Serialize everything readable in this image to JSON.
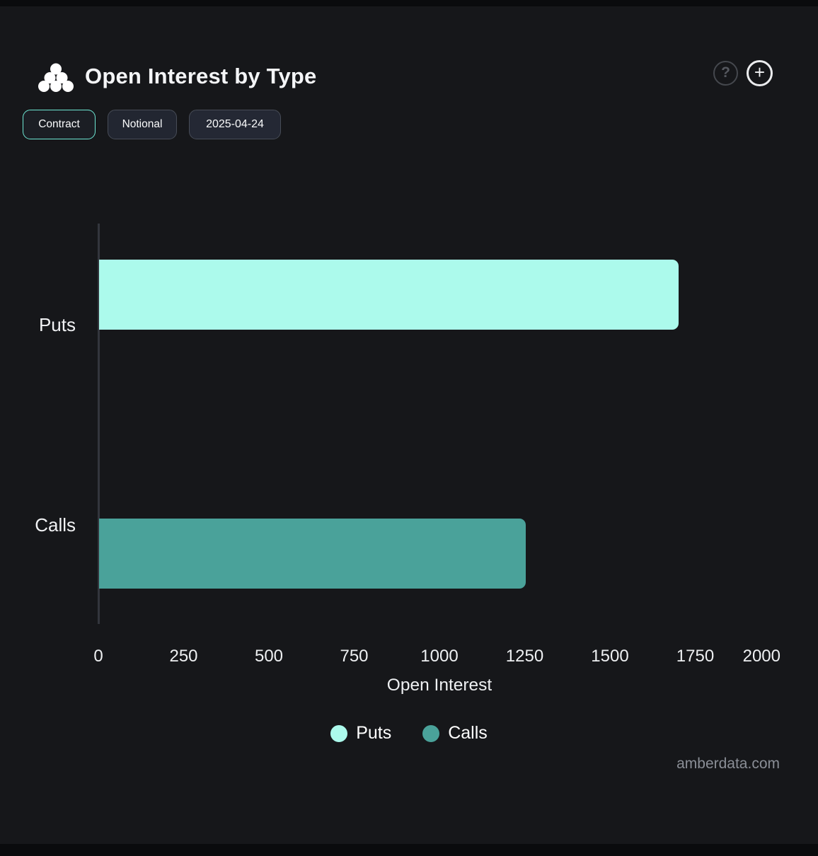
{
  "header": {
    "title": "Open Interest by Type",
    "logo_icon": "amberdata-logo",
    "help_glyph": "?",
    "add_glyph": "+"
  },
  "toolbar": {
    "contract_label": "Contract",
    "notional_label": "Notional",
    "date_label": "2025-04-24"
  },
  "chart_data": {
    "type": "bar",
    "orientation": "horizontal",
    "title": "Open Interest by Type",
    "categories": [
      "Puts",
      "Calls"
    ],
    "series": [
      {
        "name": "Puts",
        "color": "#ACFAEC",
        "values": [
          1700,
          0
        ]
      },
      {
        "name": "Calls",
        "color": "#4AA29A",
        "values": [
          0,
          1250
        ]
      }
    ],
    "xlabel": "Open Interest",
    "ylabel": "",
    "xlim": [
      0,
      2000
    ],
    "xticks": [
      0,
      250,
      500,
      750,
      1000,
      1250,
      1500,
      1750,
      2000
    ],
    "grid": false,
    "legend": {
      "position": "bottom",
      "entries": [
        "Puts",
        "Calls"
      ]
    }
  },
  "footer": {
    "watermark": "amberdata.com"
  },
  "colors": {
    "panel_background": "#16171A",
    "page_background": "#0A0B0D",
    "axis_line": "#33363D",
    "accent": "#6EE8D4",
    "puts_bar": "#ACFAEC",
    "calls_bar": "#4AA29A"
  }
}
